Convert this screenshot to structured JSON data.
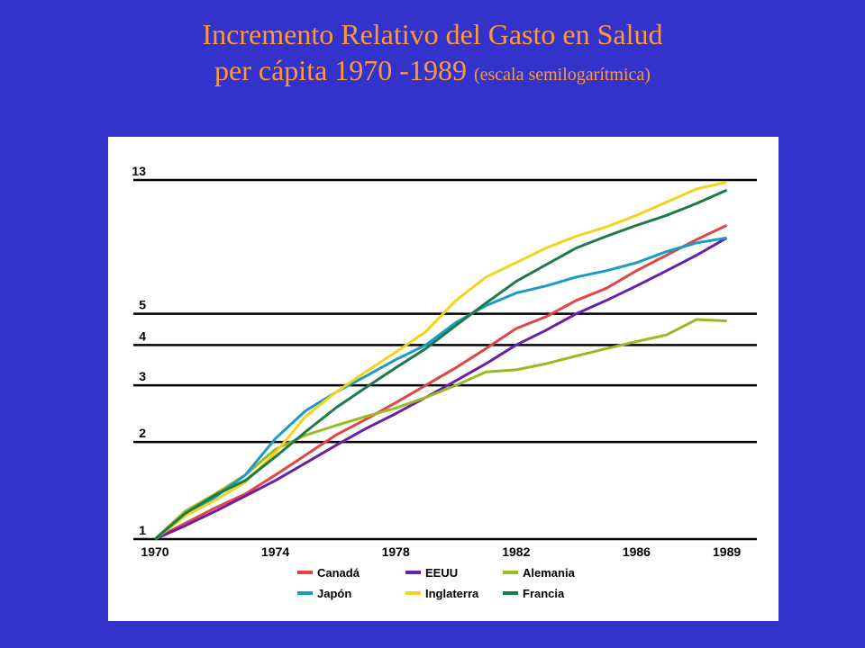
{
  "title": {
    "line1": "Incremento Relativo del Gasto en Salud",
    "line2_main": "per cápita 1970 -1989",
    "line2_note": "(escala semilogarítmica)"
  },
  "colors": {
    "background": "#3333cc",
    "title": "#ff9933",
    "Canadá": "#e04646",
    "EEUU": "#6a1fa8",
    "Alemania": "#99bb22",
    "Japón": "#1a9bc6",
    "Inglaterra": "#f5d21c",
    "Francia": "#1e7a4a"
  },
  "chart_data": {
    "type": "line",
    "scale": "log",
    "x_ticks": [
      "1970",
      "1974",
      "1978",
      "1982",
      "1986",
      "1989"
    ],
    "x_tick_values": [
      1970,
      1974,
      1978,
      1982,
      1986,
      1989
    ],
    "xlim": [
      1970,
      1990
    ],
    "y_ticks": [
      "1",
      "2",
      "3",
      "4",
      "5",
      "13"
    ],
    "y_tick_values": [
      1,
      2,
      3,
      4,
      5,
      13
    ],
    "ylim": [
      1,
      13
    ],
    "grid": "horizontal at y ticks",
    "legend_position": "bottom",
    "series": [
      {
        "name": "Canadá",
        "x": [
          1970,
          1971,
          1972,
          1973,
          1974,
          1975,
          1976,
          1977,
          1978,
          1979,
          1980,
          1981,
          1982,
          1983,
          1984,
          1985,
          1986,
          1987,
          1988,
          1989
        ],
        "y": [
          1.0,
          1.12,
          1.25,
          1.38,
          1.58,
          1.82,
          2.1,
          2.35,
          2.65,
          3.0,
          3.4,
          3.9,
          4.5,
          4.9,
          5.5,
          6.0,
          6.8,
          7.6,
          8.5,
          9.4
        ]
      },
      {
        "name": "EEUU",
        "x": [
          1970,
          1971,
          1972,
          1973,
          1974,
          1975,
          1976,
          1977,
          1978,
          1979,
          1980,
          1981,
          1982,
          1983,
          1984,
          1985,
          1986,
          1987,
          1988,
          1989
        ],
        "y": [
          1.0,
          1.1,
          1.22,
          1.36,
          1.52,
          1.72,
          1.95,
          2.2,
          2.45,
          2.75,
          3.1,
          3.5,
          4.0,
          4.45,
          5.0,
          5.5,
          6.1,
          6.8,
          7.6,
          8.6
        ]
      },
      {
        "name": "Alemania",
        "x": [
          1970,
          1971,
          1972,
          1973,
          1974,
          1975,
          1976,
          1977,
          1978,
          1979,
          1980,
          1981,
          1982,
          1983,
          1984,
          1985,
          1986,
          1987,
          1988,
          1989
        ],
        "y": [
          1.0,
          1.22,
          1.38,
          1.58,
          1.9,
          2.1,
          2.25,
          2.4,
          2.55,
          2.75,
          3.0,
          3.3,
          3.35,
          3.5,
          3.7,
          3.9,
          4.1,
          4.3,
          4.8,
          4.75
        ]
      },
      {
        "name": "Japón",
        "x": [
          1970,
          1971,
          1972,
          1973,
          1974,
          1975,
          1976,
          1977,
          1978,
          1979,
          1980,
          1981,
          1982,
          1983,
          1984,
          1985,
          1986,
          1987,
          1988,
          1989
        ],
        "y": [
          1.0,
          1.18,
          1.35,
          1.58,
          2.05,
          2.5,
          2.85,
          3.2,
          3.6,
          4.0,
          4.7,
          5.3,
          5.8,
          6.1,
          6.5,
          6.8,
          7.2,
          7.8,
          8.3,
          8.6
        ]
      },
      {
        "name": "Inglaterra",
        "x": [
          1970,
          1971,
          1972,
          1973,
          1974,
          1975,
          1976,
          1977,
          1978,
          1979,
          1980,
          1981,
          1982,
          1983,
          1984,
          1985,
          1986,
          1987,
          1988,
          1989
        ],
        "y": [
          1.0,
          1.18,
          1.32,
          1.5,
          1.85,
          2.4,
          2.85,
          3.3,
          3.8,
          4.4,
          5.5,
          6.5,
          7.2,
          8.0,
          8.7,
          9.3,
          10.1,
          11.1,
          12.2,
          12.8
        ]
      },
      {
        "name": "Francia",
        "x": [
          1970,
          1971,
          1972,
          1973,
          1974,
          1975,
          1976,
          1977,
          1978,
          1979,
          1980,
          1981,
          1982,
          1983,
          1984,
          1985,
          1986,
          1987,
          1988,
          1989
        ],
        "y": [
          1.0,
          1.2,
          1.37,
          1.52,
          1.8,
          2.15,
          2.55,
          2.95,
          3.4,
          3.9,
          4.6,
          5.4,
          6.3,
          7.1,
          8.0,
          8.7,
          9.4,
          10.1,
          11.0,
          12.1
        ]
      }
    ]
  }
}
